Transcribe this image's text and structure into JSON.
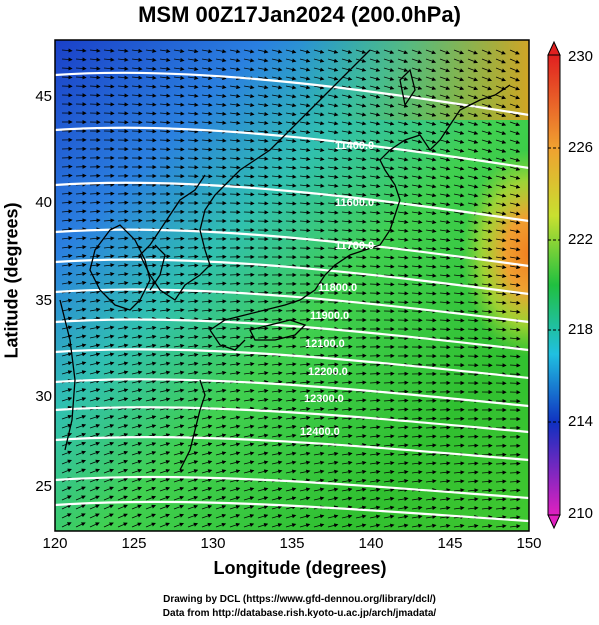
{
  "title": "MSM 00Z17Jan2024 (200.0hPa)",
  "xaxis": {
    "label": "Longitude (degrees)",
    "ticks": [
      "120",
      "125",
      "130",
      "135",
      "140",
      "145",
      "150"
    ]
  },
  "yaxis": {
    "label": "Latitude  (degrees)",
    "ticks": [
      "45",
      "40",
      "35",
      "30",
      "25"
    ]
  },
  "colorbar": {
    "ticks": [
      "230",
      "226",
      "222",
      "218",
      "214",
      "210"
    ]
  },
  "contours": [
    "11400.0",
    "11600.0",
    "11700.0",
    "11800.0",
    "11900.0",
    "12100.0",
    "12200.0",
    "12300.0",
    "12400.0"
  ],
  "credits": {
    "line1": "Drawing by DCL (https://www.gfd-dennou.org/library/dcl/)",
    "line2": "Data from http://database.rish.kyoto-u.ac.jp/arch/jmadata/"
  },
  "colors": {
    "low": "#c000c0",
    "mid_low": "#1040c0",
    "mid": "#20c060",
    "mid_high": "#d8e020",
    "high": "#e04020"
  }
}
